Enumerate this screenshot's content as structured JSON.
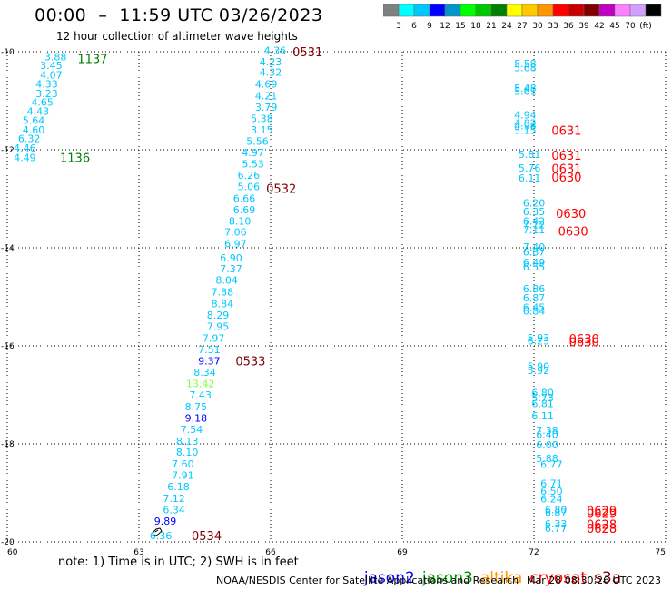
{
  "header": {
    "title": "00:00  –  11:59 UTC 03/26/2023",
    "subtitle": "12 hour collection of altimeter wave heights"
  },
  "colorbar": {
    "colors": [
      "#808080",
      "#00ffff",
      "#00c8ff",
      "#0000ff",
      "#0096c8",
      "#00ff00",
      "#00c800",
      "#008000",
      "#ffff00",
      "#ffc800",
      "#ff9600",
      "#ff0000",
      "#c80000",
      "#800000",
      "#c000c0",
      "#ff80ff",
      "#d0a0ff",
      "#000000"
    ],
    "labels": [
      "3",
      "6",
      "9",
      "12",
      "15",
      "18",
      "21",
      "24",
      "27",
      "30",
      "33",
      "36",
      "39",
      "42",
      "45",
      "70",
      "(ft)"
    ]
  },
  "chart_data": {
    "type": "scatter",
    "title": "12 hour collection of altimeter wave heights",
    "xlim": [
      60,
      75
    ],
    "ylim": [
      -20,
      -10
    ],
    "xticks": [
      "60",
      "63",
      "66",
      "69",
      "72",
      "75"
    ],
    "yticks": [
      "-10",
      "-12",
      "-14",
      "-16",
      "-18",
      "-20"
    ],
    "grid": true,
    "swh_points": [
      {
        "x": 61.1,
        "y": -10.1,
        "v": "3.88",
        "c": "#00c8ff"
      },
      {
        "x": 61.0,
        "y": -10.28,
        "v": "3.45",
        "c": "#00c8ff"
      },
      {
        "x": 61.0,
        "y": -10.47,
        "v": "4.07",
        "c": "#00c8ff"
      },
      {
        "x": 60.9,
        "y": -10.66,
        "v": "4.33",
        "c": "#00c8ff"
      },
      {
        "x": 60.9,
        "y": -10.85,
        "v": "3.23",
        "c": "#00c8ff"
      },
      {
        "x": 60.8,
        "y": -11.03,
        "v": "4.65",
        "c": "#00c8ff"
      },
      {
        "x": 60.7,
        "y": -11.21,
        "v": "4.43",
        "c": "#00c8ff"
      },
      {
        "x": 60.6,
        "y": -11.4,
        "v": "5.64",
        "c": "#00c8ff"
      },
      {
        "x": 60.6,
        "y": -11.59,
        "v": "4.60",
        "c": "#00c8ff"
      },
      {
        "x": 60.5,
        "y": -11.77,
        "v": "6.32",
        "c": "#00c8ff"
      },
      {
        "x": 60.4,
        "y": -11.96,
        "v": "4.46",
        "c": "#00c8ff"
      },
      {
        "x": 60.4,
        "y": -12.16,
        "v": "4.49",
        "c": "#00c8ff"
      },
      {
        "x": 66.1,
        "y": -9.97,
        "v": "4.36",
        "c": "#00c8ff"
      },
      {
        "x": 66.0,
        "y": -10.2,
        "v": "4.23",
        "c": "#00c8ff"
      },
      {
        "x": 66.0,
        "y": -10.42,
        "v": "4.32",
        "c": "#00c8ff"
      },
      {
        "x": 65.9,
        "y": -10.66,
        "v": "4.69",
        "c": "#00c8ff"
      },
      {
        "x": 65.9,
        "y": -10.9,
        "v": "4.21",
        "c": "#00c8ff"
      },
      {
        "x": 65.9,
        "y": -11.13,
        "v": "3.79",
        "c": "#00c8ff"
      },
      {
        "x": 65.8,
        "y": -11.36,
        "v": "5.38",
        "c": "#00c8ff"
      },
      {
        "x": 65.8,
        "y": -11.59,
        "v": "3.15",
        "c": "#00c8ff"
      },
      {
        "x": 65.7,
        "y": -11.82,
        "v": "5.56",
        "c": "#00c8ff"
      },
      {
        "x": 65.6,
        "y": -12.06,
        "v": "4.97",
        "c": "#00c8ff"
      },
      {
        "x": 65.6,
        "y": -12.29,
        "v": "5.53",
        "c": "#00c8ff"
      },
      {
        "x": 65.5,
        "y": -12.52,
        "v": "6.26",
        "c": "#00c8ff"
      },
      {
        "x": 65.5,
        "y": -12.75,
        "v": "5.06",
        "c": "#00c8ff"
      },
      {
        "x": 65.4,
        "y": -12.99,
        "v": "6.66",
        "c": "#00c8ff"
      },
      {
        "x": 65.4,
        "y": -13.22,
        "v": "6.69",
        "c": "#00c8ff"
      },
      {
        "x": 65.3,
        "y": -13.45,
        "v": "8.10",
        "c": "#00c8ff"
      },
      {
        "x": 65.2,
        "y": -13.68,
        "v": "7.06",
        "c": "#00c8ff"
      },
      {
        "x": 65.2,
        "y": -13.92,
        "v": "6.97",
        "c": "#00c8ff"
      },
      {
        "x": 65.1,
        "y": -14.2,
        "v": "6.90",
        "c": "#00c8ff"
      },
      {
        "x": 65.1,
        "y": -14.43,
        "v": "7.37",
        "c": "#00c8ff"
      },
      {
        "x": 65.0,
        "y": -14.66,
        "v": "8.04",
        "c": "#00c8ff"
      },
      {
        "x": 64.9,
        "y": -14.9,
        "v": "7.88",
        "c": "#00c8ff"
      },
      {
        "x": 64.9,
        "y": -15.14,
        "v": "8.84",
        "c": "#00c8ff"
      },
      {
        "x": 64.8,
        "y": -15.37,
        "v": "8.29",
        "c": "#00c8ff"
      },
      {
        "x": 64.8,
        "y": -15.6,
        "v": "7.95",
        "c": "#00c8ff"
      },
      {
        "x": 64.7,
        "y": -15.84,
        "v": "7.97",
        "c": "#00c8ff"
      },
      {
        "x": 64.6,
        "y": -16.07,
        "v": "7.51",
        "c": "#00c8ff"
      },
      {
        "x": 64.6,
        "y": -16.31,
        "v": "9.37",
        "c": "#0000ff"
      },
      {
        "x": 64.5,
        "y": -16.54,
        "v": "8.34",
        "c": "#00c8ff"
      },
      {
        "x": 64.4,
        "y": -16.77,
        "v": "13.42",
        "c": "#80ff40"
      },
      {
        "x": 64.4,
        "y": -17.0,
        "v": "7.43",
        "c": "#00c8ff"
      },
      {
        "x": 64.3,
        "y": -17.24,
        "v": "8.75",
        "c": "#00c8ff"
      },
      {
        "x": 64.3,
        "y": -17.47,
        "v": "9.18",
        "c": "#0000ff"
      },
      {
        "x": 64.2,
        "y": -17.7,
        "v": "7.54",
        "c": "#00c8ff"
      },
      {
        "x": 64.1,
        "y": -17.94,
        "v": "8.13",
        "c": "#00c8ff"
      },
      {
        "x": 64.1,
        "y": -18.17,
        "v": "8.10",
        "c": "#00c8ff"
      },
      {
        "x": 64.0,
        "y": -18.41,
        "v": "7.60",
        "c": "#00c8ff"
      },
      {
        "x": 64.0,
        "y": -18.64,
        "v": "7.91",
        "c": "#00c8ff"
      },
      {
        "x": 63.9,
        "y": -18.87,
        "v": "6.18",
        "c": "#00c8ff"
      },
      {
        "x": 63.8,
        "y": -19.11,
        "v": "7.12",
        "c": "#00c8ff"
      },
      {
        "x": 63.8,
        "y": -19.34,
        "v": "6.34",
        "c": "#00c8ff"
      },
      {
        "x": 63.6,
        "y": -19.57,
        "v": "9.89",
        "c": "#0000ff"
      },
      {
        "x": 63.5,
        "y": -19.87,
        "v": "6.36",
        "c": "#00c8ff"
      },
      {
        "x": 71.8,
        "y": -10.24,
        "v": "5.58",
        "c": "#00c8ff"
      },
      {
        "x": 71.8,
        "y": -10.32,
        "v": "5.68",
        "c": "#00c8ff"
      },
      {
        "x": 71.8,
        "y": -10.74,
        "v": "5.48",
        "c": "#00c8ff"
      },
      {
        "x": 71.8,
        "y": -10.81,
        "v": "5.61",
        "c": "#00c8ff"
      },
      {
        "x": 71.8,
        "y": -11.29,
        "v": "4.94",
        "c": "#00c8ff"
      },
      {
        "x": 71.8,
        "y": -11.45,
        "v": "4.82",
        "c": "#00c8ff"
      },
      {
        "x": 71.8,
        "y": -11.51,
        "v": "4.98",
        "c": "#00c8ff"
      },
      {
        "x": 71.8,
        "y": -11.6,
        "v": "5.15",
        "c": "#00c8ff"
      },
      {
        "x": 71.9,
        "y": -12.09,
        "v": "5.81",
        "c": "#00c8ff"
      },
      {
        "x": 71.9,
        "y": -12.37,
        "v": "5.76",
        "c": "#00c8ff"
      },
      {
        "x": 71.9,
        "y": -12.57,
        "v": "6.11",
        "c": "#00c8ff"
      },
      {
        "x": 72.0,
        "y": -13.08,
        "v": "6.20",
        "c": "#00c8ff"
      },
      {
        "x": 72.0,
        "y": -13.26,
        "v": "6.35",
        "c": "#00c8ff"
      },
      {
        "x": 72.0,
        "y": -13.45,
        "v": "6.42",
        "c": "#00c8ff"
      },
      {
        "x": 72.0,
        "y": -13.53,
        "v": "7.12",
        "c": "#00c8ff"
      },
      {
        "x": 72.0,
        "y": -13.63,
        "v": "7.11",
        "c": "#00c8ff"
      },
      {
        "x": 72.0,
        "y": -13.98,
        "v": "7.40",
        "c": "#00c8ff"
      },
      {
        "x": 72.0,
        "y": -14.08,
        "v": "6.87",
        "c": "#00c8ff"
      },
      {
        "x": 72.0,
        "y": -14.3,
        "v": "6.49",
        "c": "#00c8ff"
      },
      {
        "x": 72.0,
        "y": -14.39,
        "v": "6.55",
        "c": "#00c8ff"
      },
      {
        "x": 72.0,
        "y": -14.83,
        "v": "6.86",
        "c": "#00c8ff"
      },
      {
        "x": 72.0,
        "y": -15.02,
        "v": "6.87",
        "c": "#00c8ff"
      },
      {
        "x": 72.0,
        "y": -15.21,
        "v": "6.45",
        "c": "#00c8ff"
      },
      {
        "x": 72.0,
        "y": -15.29,
        "v": "6.84",
        "c": "#00c8ff"
      },
      {
        "x": 72.1,
        "y": -15.83,
        "v": "5.93",
        "c": "#00c8ff"
      },
      {
        "x": 72.1,
        "y": -15.9,
        "v": "6.23",
        "c": "#00c8ff"
      },
      {
        "x": 72.1,
        "y": -16.42,
        "v": "5.90",
        "c": "#00c8ff"
      },
      {
        "x": 72.1,
        "y": -16.5,
        "v": "5.92",
        "c": "#00c8ff"
      },
      {
        "x": 72.2,
        "y": -16.95,
        "v": "6.80",
        "c": "#00c8ff"
      },
      {
        "x": 72.2,
        "y": -17.06,
        "v": "5.73",
        "c": "#00c8ff"
      },
      {
        "x": 72.2,
        "y": -17.18,
        "v": "6.81",
        "c": "#00c8ff"
      },
      {
        "x": 72.2,
        "y": -17.43,
        "v": "6.11",
        "c": "#00c8ff"
      },
      {
        "x": 72.3,
        "y": -17.72,
        "v": "7.38",
        "c": "#00c8ff"
      },
      {
        "x": 72.3,
        "y": -17.81,
        "v": "6.40",
        "c": "#00c8ff"
      },
      {
        "x": 72.3,
        "y": -18.02,
        "v": "6.00",
        "c": "#00c8ff"
      },
      {
        "x": 72.3,
        "y": -18.3,
        "v": "5.88",
        "c": "#00c8ff"
      },
      {
        "x": 72.4,
        "y": -18.42,
        "v": "6.77",
        "c": "#00c8ff"
      },
      {
        "x": 72.4,
        "y": -18.81,
        "v": "6.71",
        "c": "#00c8ff"
      },
      {
        "x": 72.4,
        "y": -18.96,
        "v": "6.50",
        "c": "#00c8ff"
      },
      {
        "x": 72.4,
        "y": -19.12,
        "v": "6.24",
        "c": "#00c8ff"
      },
      {
        "x": 72.5,
        "y": -19.34,
        "v": "6.80",
        "c": "#00c8ff"
      },
      {
        "x": 72.5,
        "y": -19.4,
        "v": "6.87",
        "c": "#00c8ff"
      },
      {
        "x": 72.5,
        "y": -19.63,
        "v": "6.33",
        "c": "#00c8ff"
      },
      {
        "x": 72.5,
        "y": -19.72,
        "v": "6.77",
        "c": "#00c8ff"
      }
    ],
    "time_labels": [
      {
        "x": 61.6,
        "y": -10.14,
        "v": "1137",
        "c": "#008000"
      },
      {
        "x": 61.2,
        "y": -12.16,
        "v": "1136",
        "c": "#008000"
      },
      {
        "x": 66.5,
        "y": -10.0,
        "v": "0531",
        "c": "#800000"
      },
      {
        "x": 65.9,
        "y": -12.79,
        "v": "0532",
        "c": "#800000"
      },
      {
        "x": 65.2,
        "y": -16.31,
        "v": "0533",
        "c": "#800000"
      },
      {
        "x": 64.2,
        "y": -19.87,
        "v": "0534",
        "c": "#800000"
      },
      {
        "x": 72.4,
        "y": -11.6,
        "v": "0631",
        "c": "#ff0000"
      },
      {
        "x": 72.4,
        "y": -12.11,
        "v": "0631",
        "c": "#ff0000"
      },
      {
        "x": 72.4,
        "y": -12.38,
        "v": "0631",
        "c": "#ff0000"
      },
      {
        "x": 72.4,
        "y": -12.56,
        "v": "0630",
        "c": "#ff0000"
      },
      {
        "x": 72.5,
        "y": -13.3,
        "v": "0630",
        "c": "#ff0000"
      },
      {
        "x": 72.55,
        "y": -13.66,
        "v": "0630",
        "c": "#ff0000"
      },
      {
        "x": 72.8,
        "y": -15.85,
        "v": "0630",
        "c": "#ff0000"
      },
      {
        "x": 72.8,
        "y": -15.92,
        "v": "0630",
        "c": "#ff0000"
      },
      {
        "x": 73.2,
        "y": -19.36,
        "v": "0629",
        "c": "#ff0000"
      },
      {
        "x": 73.2,
        "y": -19.42,
        "v": "0629",
        "c": "#ff0000"
      },
      {
        "x": 73.2,
        "y": -19.64,
        "v": "0628",
        "c": "#ff0000"
      },
      {
        "x": 73.2,
        "y": -19.72,
        "v": "0628",
        "c": "#ff0000"
      }
    ]
  },
  "footer": {
    "note": "note: 1) Time is in UTC; 2) SWH is in feet",
    "legend": [
      {
        "name": "jason2",
        "color": "#0000ff"
      },
      {
        "name": "jason3",
        "color": "#009600"
      },
      {
        "name": "altika",
        "color": "#ff9600"
      },
      {
        "name": "cryosat",
        "color": "#ff0000"
      },
      {
        "name": "s3a",
        "color": "#800000"
      }
    ],
    "credit": "NOAA/NESDIS Center for Satellite Applications and Research",
    "timestamp": "Mar 28 08:30:26 UTC 2023"
  }
}
